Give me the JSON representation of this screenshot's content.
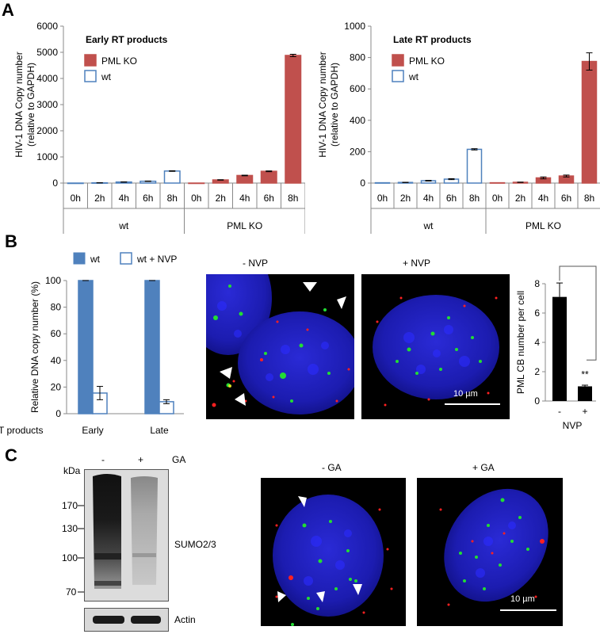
{
  "panels": {
    "a": "A",
    "b": "B",
    "c": "C"
  },
  "chart_data": [
    {
      "type": "bar",
      "title": "Early RT products",
      "ylabel": "HIV-1 DNA Copy number (relative to GAPDH)",
      "ylabel_lines": [
        "HIV-1 DNA Copy number",
        "(relative to GAPDH)"
      ],
      "ylim": [
        0,
        6000
      ],
      "yticks": [
        0,
        1000,
        2000,
        3000,
        4000,
        5000,
        6000
      ],
      "groups": [
        "wt",
        "PML KO"
      ],
      "categories": [
        "0h",
        "2h",
        "4h",
        "6h",
        "8h"
      ],
      "series": [
        {
          "name": "wt",
          "values": [
            0,
            10,
            40,
            70,
            460
          ],
          "errors": [
            0,
            3,
            6,
            8,
            12
          ],
          "fill": "#ffffff",
          "stroke": "#4f81bd"
        },
        {
          "name": "PML KO",
          "values": [
            0,
            120,
            290,
            450,
            4880
          ],
          "errors": [
            0,
            8,
            12,
            15,
            45
          ],
          "fill": "#c0504d",
          "stroke": "#c0504d"
        }
      ],
      "legend": [
        "PML KO",
        "wt"
      ],
      "legend_position": "top-left",
      "grid": false
    },
    {
      "type": "bar",
      "title": "Late RT products",
      "ylabel": "HIV-1 DNA Copy number (relative to GAPDH)",
      "ylabel_lines": [
        "HIV-1 DNA Copy number",
        "(relative to GAPDH)"
      ],
      "ylim": [
        0,
        1000
      ],
      "yticks": [
        0,
        200,
        400,
        600,
        800,
        1000
      ],
      "groups": [
        "wt",
        "PML KO"
      ],
      "categories": [
        "0h",
        "2h",
        "4h",
        "6h",
        "8h"
      ],
      "series": [
        {
          "name": "wt",
          "values": [
            2,
            4,
            15,
            25,
            215
          ],
          "errors": [
            0,
            1,
            2,
            3,
            4
          ],
          "fill": "#ffffff",
          "stroke": "#4f81bd"
        },
        {
          "name": "PML KO",
          "values": [
            2,
            5,
            33,
            45,
            775
          ],
          "errors": [
            0,
            1,
            6,
            6,
            55
          ],
          "fill": "#c0504d",
          "stroke": "#c0504d"
        }
      ],
      "legend": [
        "PML KO",
        "wt"
      ],
      "legend_position": "top-left",
      "grid": false
    },
    {
      "type": "bar",
      "title": "",
      "ylabel": "Relative DNA copy number (%)",
      "xlabel": "RT products",
      "ylim": [
        0,
        100
      ],
      "yticks": [
        0,
        20,
        40,
        60,
        80,
        100
      ],
      "categories": [
        "Early",
        "Late"
      ],
      "series": [
        {
          "name": "wt",
          "values": [
            100,
            100
          ],
          "errors": [
            0,
            0
          ],
          "fill": "#4f81bd",
          "stroke": "#4f81bd"
        },
        {
          "name": "wt + NVP",
          "values": [
            15.5,
            9
          ],
          "errors": [
            5,
            1.5
          ],
          "fill": "#ffffff",
          "stroke": "#4f81bd"
        }
      ],
      "legend": [
        "wt",
        "wt + NVP"
      ],
      "legend_position": "top",
      "grid": false
    },
    {
      "type": "bar",
      "title": "",
      "ylabel": "PML CB number per cell",
      "xlabel": "NVP",
      "ylim": [
        0,
        8
      ],
      "yticks": [
        0,
        2,
        4,
        6,
        8
      ],
      "categories": [
        "-",
        "+"
      ],
      "series": [
        {
          "values": [
            7.1,
            1.0
          ],
          "errors": [
            0.95,
            0.08
          ],
          "fill": "#000000",
          "stroke": "#000000"
        }
      ],
      "annotation": "**",
      "grid": false
    }
  ],
  "micrographs": {
    "b_minus": "-  NVP",
    "b_plus": "+ NVP",
    "c_minus": "- GA",
    "c_plus": "+ GA",
    "scale_bar": "10 µm"
  },
  "western": {
    "kda_label": "kDa",
    "lane_labels": [
      "-",
      "+"
    ],
    "treatment": "GA",
    "markers": [
      "170",
      "130",
      "100",
      "70"
    ],
    "sumo_label": "SUMO2/3",
    "actin_label": "Actin"
  }
}
